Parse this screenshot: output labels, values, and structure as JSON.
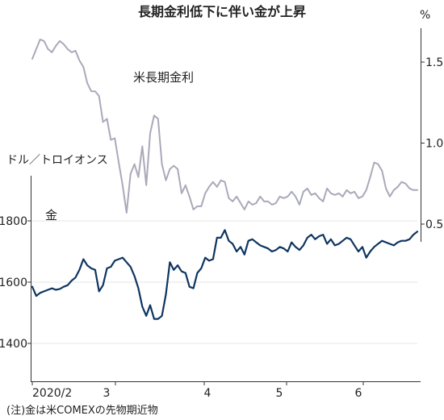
{
  "chart_data": {
    "type": "line",
    "title": "長期金利低下に伴い金が上昇",
    "note": "(注)金は米COMEXの先物期近物",
    "x_ticks": [
      "2020/2",
      "3",
      "4",
      "5",
      "6"
    ],
    "left_axis": {
      "unit": "ドル／トロイオンス",
      "ticks": [
        1400,
        1600,
        1800
      ],
      "range": [
        1280,
        1900
      ]
    },
    "right_axis": {
      "unit": "%",
      "ticks": [
        "0.5",
        "1.0",
        "1.5"
      ],
      "range": [
        0.5,
        1.8
      ]
    },
    "series": [
      {
        "name": "米長期金利",
        "axis": "right",
        "color": "#a9a9ba",
        "values": [
          1.52,
          1.58,
          1.64,
          1.63,
          1.58,
          1.56,
          1.6,
          1.63,
          1.61,
          1.58,
          1.56,
          1.57,
          1.51,
          1.47,
          1.37,
          1.32,
          1.32,
          1.29,
          1.13,
          1.15,
          1.02,
          1.03,
          0.88,
          0.74,
          0.57,
          0.81,
          0.87,
          0.79,
          0.98,
          0.74,
          1.06,
          1.17,
          1.15,
          0.87,
          0.77,
          0.84,
          0.86,
          0.84,
          0.69,
          0.74,
          0.67,
          0.59,
          0.61,
          0.61,
          0.69,
          0.73,
          0.76,
          0.73,
          0.77,
          0.76,
          0.66,
          0.64,
          0.67,
          0.63,
          0.59,
          0.64,
          0.62,
          0.63,
          0.67,
          0.64,
          0.64,
          0.62,
          0.63,
          0.67,
          0.66,
          0.67,
          0.7,
          0.67,
          0.62,
          0.7,
          0.72,
          0.68,
          0.69,
          0.66,
          0.64,
          0.72,
          0.69,
          0.68,
          0.69,
          0.67,
          0.71,
          0.69,
          0.7,
          0.66,
          0.67,
          0.71,
          0.79,
          0.88,
          0.87,
          0.83,
          0.72,
          0.67,
          0.71,
          0.73,
          0.76,
          0.75,
          0.72,
          0.71,
          0.71
        ]
      },
      {
        "name": "金",
        "axis": "left",
        "color": "#0e3561",
        "values": [
          1585,
          1555,
          1565,
          1570,
          1575,
          1580,
          1575,
          1578,
          1585,
          1590,
          1605,
          1615,
          1640,
          1675,
          1655,
          1645,
          1640,
          1570,
          1590,
          1645,
          1650,
          1670,
          1675,
          1680,
          1665,
          1650,
          1620,
          1580,
          1520,
          1490,
          1525,
          1480,
          1480,
          1490,
          1560,
          1665,
          1640,
          1655,
          1635,
          1630,
          1585,
          1580,
          1630,
          1645,
          1680,
          1670,
          1675,
          1745,
          1745,
          1770,
          1735,
          1725,
          1700,
          1715,
          1690,
          1735,
          1740,
          1730,
          1720,
          1715,
          1710,
          1700,
          1705,
          1715,
          1710,
          1700,
          1730,
          1715,
          1705,
          1720,
          1745,
          1755,
          1740,
          1750,
          1755,
          1725,
          1740,
          1720,
          1725,
          1735,
          1745,
          1740,
          1720,
          1700,
          1715,
          1680,
          1700,
          1715,
          1725,
          1735,
          1730,
          1725,
          1720,
          1730,
          1735,
          1735,
          1740,
          1755,
          1765
        ]
      }
    ],
    "annotations": [
      {
        "text": "米長期金利",
        "series": "米長期金利"
      },
      {
        "text": "金",
        "series": "金"
      }
    ]
  }
}
